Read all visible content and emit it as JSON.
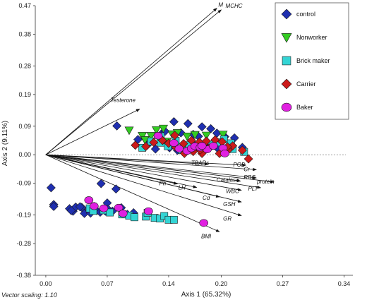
{
  "chart_data": {
    "type": "scatter",
    "xlabel": "Axis 1 (65.32%)",
    "ylabel": "Axis 2 (9.11%)",
    "footnote": "Vector scaling: 1.10",
    "xlim": [
      -0.012,
      0.35
    ],
    "ylim": [
      -0.38,
      0.47
    ],
    "x_ticks": [
      "0.00",
      "0.07",
      "0.14",
      "0.20",
      "0.27",
      "0.34"
    ],
    "x_tick_values": [
      0.0,
      0.07,
      0.14,
      0.2,
      0.27,
      0.34
    ],
    "y_ticks": [
      "0.47",
      "0.38",
      "0.28",
      "0.19",
      "0.09",
      "0.00",
      "-0.09",
      "-0.19",
      "-0.28",
      "-0.38"
    ],
    "y_tick_values": [
      0.47,
      0.38,
      0.28,
      0.19,
      0.09,
      0.0,
      -0.09,
      -0.19,
      -0.28,
      -0.38
    ],
    "zero_line": "dashed",
    "legend_position": "top-right",
    "vectors": [
      {
        "label": "MCHC",
        "x": 0.2,
        "y": 0.457
      },
      {
        "label": "M",
        "x": 0.195,
        "y": 0.462
      },
      {
        "label": "Testerone",
        "x": 0.107,
        "y": 0.144
      },
      {
        "label": "TBARs",
        "x": 0.185,
        "y": -0.03
      },
      {
        "label": "POD",
        "x": 0.228,
        "y": -0.033
      },
      {
        "label": "Cr",
        "x": 0.24,
        "y": -0.047
      },
      {
        "label": "RBC",
        "x": 0.24,
        "y": -0.073
      },
      {
        "label": "Catalase",
        "x": 0.222,
        "y": -0.083
      },
      {
        "label": "protein",
        "x": 0.26,
        "y": -0.086
      },
      {
        "label": "PLT",
        "x": 0.245,
        "y": -0.104
      },
      {
        "label": "WBC",
        "x": 0.223,
        "y": -0.112
      },
      {
        "label": "Ph",
        "x": 0.15,
        "y": -0.092
      },
      {
        "label": "LH",
        "x": 0.172,
        "y": -0.103
      },
      {
        "label": "Cd",
        "x": 0.198,
        "y": -0.133
      },
      {
        "label": "GSH",
        "x": 0.223,
        "y": -0.149
      },
      {
        "label": "GR",
        "x": 0.223,
        "y": -0.192
      },
      {
        "label": "BMI",
        "x": 0.198,
        "y": -0.243
      }
    ],
    "series": [
      {
        "name": "control",
        "marker": "diamond",
        "color": "#1f2fb0",
        "points": [
          [
            0.006,
            -0.104
          ],
          [
            0.009,
            -0.157
          ],
          [
            0.009,
            -0.163
          ],
          [
            0.027,
            -0.17
          ],
          [
            0.031,
            -0.178
          ],
          [
            0.034,
            -0.165
          ],
          [
            0.029,
            -0.176
          ],
          [
            0.041,
            -0.166
          ],
          [
            0.044,
            -0.185
          ],
          [
            0.049,
            -0.173
          ],
          [
            0.051,
            -0.184
          ],
          [
            0.055,
            -0.163
          ],
          [
            0.058,
            -0.176
          ],
          [
            0.062,
            -0.181
          ],
          [
            0.068,
            -0.178
          ],
          [
            0.086,
            -0.167
          ],
          [
            0.08,
            -0.108
          ],
          [
            0.063,
            -0.091
          ],
          [
            0.039,
            -0.164
          ],
          [
            0.07,
            -0.152
          ],
          [
            0.071,
            -0.172
          ],
          [
            0.076,
            -0.178
          ],
          [
            0.093,
            -0.188
          ],
          [
            0.1,
            -0.183
          ],
          [
            0.081,
            0.091
          ],
          [
            0.105,
            0.048
          ],
          [
            0.116,
            0.031
          ],
          [
            0.134,
            0.072
          ],
          [
            0.136,
            0.074
          ],
          [
            0.146,
            0.104
          ],
          [
            0.154,
            0.069
          ],
          [
            0.162,
            0.098
          ],
          [
            0.168,
            0.064
          ],
          [
            0.174,
            0.058
          ],
          [
            0.178,
            0.088
          ],
          [
            0.188,
            0.082
          ],
          [
            0.195,
            0.068
          ],
          [
            0.204,
            0.057
          ],
          [
            0.215,
            0.053
          ],
          [
            0.224,
            0.023
          ],
          [
            0.196,
            0.02
          ],
          [
            0.15,
            0.014
          ],
          [
            0.17,
            0.028
          ],
          [
            0.186,
            0.03
          ],
          [
            0.125,
            0.018
          ],
          [
            0.141,
            0.022
          ]
        ]
      },
      {
        "name": "Nonworker",
        "marker": "triangle-down",
        "color": "#33cc22",
        "points": [
          [
            0.095,
            0.077
          ],
          [
            0.11,
            0.06
          ],
          [
            0.126,
            0.078
          ],
          [
            0.134,
            0.083
          ],
          [
            0.144,
            0.065
          ],
          [
            0.12,
            0.06
          ],
          [
            0.113,
            0.047
          ],
          [
            0.138,
            0.042
          ],
          [
            0.15,
            0.069
          ],
          [
            0.161,
            0.058
          ],
          [
            0.17,
            0.063
          ],
          [
            0.183,
            0.061
          ],
          [
            0.202,
            0.064
          ]
        ]
      },
      {
        "name": "Brick maker",
        "marker": "square",
        "color": "#33d4d4",
        "points": [
          [
            0.05,
            -0.169
          ],
          [
            0.054,
            -0.177
          ],
          [
            0.066,
            -0.175
          ],
          [
            0.073,
            -0.182
          ],
          [
            0.087,
            -0.188
          ],
          [
            0.095,
            -0.192
          ],
          [
            0.101,
            -0.197
          ],
          [
            0.114,
            -0.195
          ],
          [
            0.124,
            -0.199
          ],
          [
            0.13,
            -0.201
          ],
          [
            0.135,
            -0.193
          ],
          [
            0.14,
            -0.205
          ],
          [
            0.146,
            -0.205
          ],
          [
            0.116,
            -0.183
          ],
          [
            0.11,
            0.022
          ],
          [
            0.12,
            0.042
          ],
          [
            0.131,
            0.038
          ],
          [
            0.139,
            0.027
          ],
          [
            0.155,
            0.015
          ],
          [
            0.169,
            0.024
          ],
          [
            0.179,
            0.017
          ],
          [
            0.189,
            0.032
          ],
          [
            0.213,
            0.018
          ],
          [
            0.226,
            0.009
          ],
          [
            0.131,
            0.058
          ],
          [
            0.148,
            0.044
          ],
          [
            0.164,
            0.03
          ],
          [
            0.195,
            0.039
          ],
          [
            0.203,
            0.048
          ],
          [
            0.211,
            0.036
          ]
        ]
      },
      {
        "name": "Carrier",
        "marker": "diamond",
        "color": "#cc1a1a",
        "points": [
          [
            0.102,
            0.03
          ],
          [
            0.114,
            0.026
          ],
          [
            0.123,
            0.039
          ],
          [
            0.133,
            0.045
          ],
          [
            0.148,
            0.024
          ],
          [
            0.157,
            0.035
          ],
          [
            0.166,
            0.045
          ],
          [
            0.175,
            0.04
          ],
          [
            0.183,
            0.043
          ],
          [
            0.193,
            0.047
          ],
          [
            0.201,
            0.041
          ],
          [
            0.213,
            0.028
          ],
          [
            0.224,
            0.014
          ],
          [
            0.231,
            -0.013
          ],
          [
            0.168,
            0.01
          ],
          [
            0.186,
            0.021
          ],
          [
            0.198,
            0.004
          ],
          [
            0.208,
            0.015
          ],
          [
            0.158,
            0.004
          ],
          [
            0.178,
            0.004
          ],
          [
            0.14,
            0.036
          ],
          [
            0.147,
            0.061
          ],
          [
            0.176,
            0.015
          ],
          [
            0.207,
            0.025
          ]
        ]
      },
      {
        "name": "Baker",
        "marker": "circle",
        "color": "#e020e0",
        "points": [
          [
            0.049,
            -0.143
          ],
          [
            0.055,
            -0.162
          ],
          [
            0.066,
            -0.169
          ],
          [
            0.083,
            -0.167
          ],
          [
            0.088,
            -0.185
          ],
          [
            0.128,
            0.06
          ],
          [
            0.146,
            0.037
          ],
          [
            0.152,
            0.019
          ],
          [
            0.161,
            0.012
          ],
          [
            0.166,
            0.02
          ],
          [
            0.17,
            0.027
          ],
          [
            0.176,
            0.023
          ],
          [
            0.184,
            0.017
          ],
          [
            0.191,
            0.028
          ],
          [
            0.202,
            0.021
          ],
          [
            0.204,
            0.004
          ],
          [
            0.178,
            0.028
          ],
          [
            0.18,
            -0.215
          ],
          [
            0.117,
            -0.178
          ]
        ]
      }
    ]
  }
}
